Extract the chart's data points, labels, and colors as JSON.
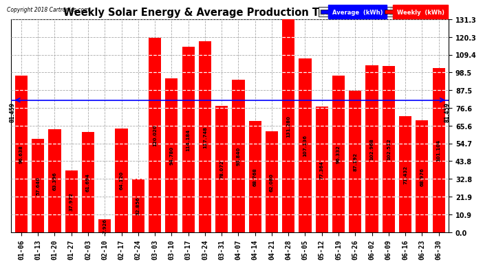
{
  "title": "Weekly Solar Energy & Average Production Tue Jul 3 20:33",
  "copyright": "Copyright 2018 Cartronics.com",
  "categories": [
    "01-06",
    "01-13",
    "01-20",
    "01-27",
    "02-03",
    "02-10",
    "02-17",
    "02-24",
    "03-03",
    "03-10",
    "03-17",
    "03-24",
    "03-31",
    "04-07",
    "04-14",
    "04-21",
    "04-28",
    "05-05",
    "05-12",
    "05-19",
    "05-26",
    "06-02",
    "06-09",
    "06-16",
    "06-23",
    "06-30"
  ],
  "values": [
    96.638,
    57.64,
    63.396,
    37.972,
    61.694,
    7.926,
    64.12,
    32.856,
    120.02,
    94.78,
    114.184,
    117.748,
    78.072,
    93.84,
    68.768,
    62.08,
    131.28,
    107.136,
    77.364,
    96.332,
    87.192,
    102.968,
    102.512,
    71.432,
    68.976,
    101.104
  ],
  "average": 81.459,
  "bar_color": "#ff0000",
  "average_line_color": "#0000ff",
  "background_color": "#ffffff",
  "grid_color": "#aaaaaa",
  "yticks": [
    0.0,
    10.9,
    21.9,
    32.8,
    43.8,
    54.7,
    65.6,
    76.6,
    87.5,
    98.5,
    109.4,
    120.3,
    131.3
  ],
  "ylim": [
    0,
    131.3
  ],
  "legend_avg_color": "#0000ff",
  "legend_weekly_color": "#ff0000",
  "value_fontsize": 5.0,
  "tick_fontsize": 7.0,
  "title_fontsize": 10.5
}
